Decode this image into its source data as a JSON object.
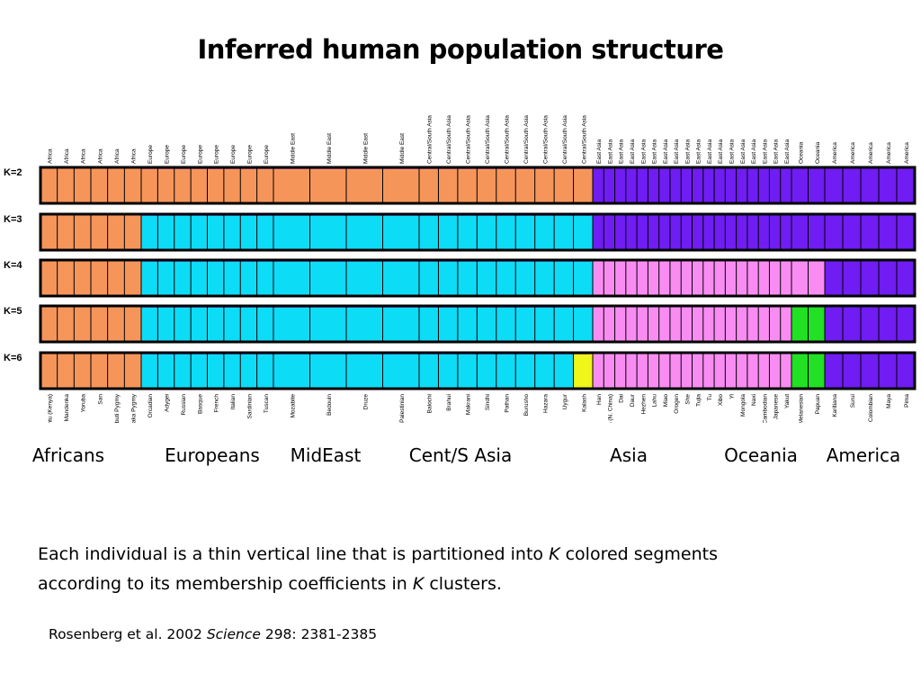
{
  "title": "Inferred human population structure",
  "chart_data": {
    "type": "stacked-bar",
    "k_rows": [
      "K=2",
      "K=3",
      "K=4",
      "K=5",
      "K=6"
    ],
    "cluster_colors": [
      "#f6955a",
      "#0ddcf6",
      "#f98cf2",
      "#6f1df2",
      "#22e024",
      "#f0f51a"
    ],
    "top_region_labels": [
      "Africa",
      "Africa",
      "Africa",
      "Africa",
      "Africa",
      "Africa",
      "Europe",
      "Europe",
      "Europe",
      "Europe",
      "Europe",
      "Europe",
      "Europe",
      "Europe",
      "Middle East",
      "Middle East",
      "Middle East",
      "Middle East",
      "Central/South Asia",
      "Central/South Asia",
      "Central/South Asia",
      "Central/South Asia",
      "Central/South Asia",
      "Central/South Asia",
      "Central/South Asia",
      "Central/South Asia",
      "Central/South Asia",
      "East Asia",
      "East Asia",
      "East Asia",
      "East Asia",
      "East Asia",
      "East Asia",
      "East Asia",
      "East Asia",
      "East Asia",
      "East Asia",
      "East Asia",
      "East Asia",
      "East Asia",
      "East Asia",
      "East Asia",
      "East Asia",
      "East Asia",
      "East Asia",
      "Oceania",
      "Oceania",
      "America",
      "America",
      "America",
      "America",
      "America"
    ],
    "populations": [
      "Bantu (Kenya)",
      "Mandenka",
      "Yoruba",
      "San",
      "Mbuti Pygmy",
      "Biaka Pygmy",
      "Orcadian",
      "Adygei",
      "Russian",
      "Basque",
      "French",
      "Italian",
      "Sardinian",
      "Tuscan",
      "Mozabite",
      "Bedouin",
      "Druze",
      "Palestinian",
      "Balochi",
      "Brahui",
      "Makrani",
      "Sindhi",
      "Pathan",
      "Burusho",
      "Hazara",
      "Uygur",
      "Kalash",
      "Han",
      "Han (N. China)",
      "Dai",
      "Daur",
      "Hezhen",
      "Lahu",
      "Miao",
      "Orogen",
      "She",
      "Tujia",
      "Tu",
      "Xibo",
      "Yi",
      "Mongola",
      "Naxi",
      "Cambodian",
      "Japanese",
      "Yakut",
      "Melanesian",
      "Papuan",
      "Karitiana",
      "Surui",
      "Colombian",
      "Maya",
      "Pima"
    ],
    "population_groups": [
      {
        "name": "Africans",
        "populations": 6
      },
      {
        "name": "Europeans",
        "populations": 8
      },
      {
        "name": "MidEast",
        "populations": 4
      },
      {
        "name": "Cent/S Asia",
        "populations": 9
      },
      {
        "name": "Asia",
        "populations": 18
      },
      {
        "name": "Oceania",
        "populations": 2
      },
      {
        "name": "America",
        "populations": 5
      }
    ],
    "dominant_cluster": {
      "K=2": {
        "Africans": "orange",
        "Europeans": "orange",
        "MidEast": "orange",
        "Cent/S Asia": "orange",
        "Asia": "purple",
        "Oceania": "purple",
        "America": "purple"
      },
      "K=3": {
        "Africans": "orange",
        "Europeans": "cyan",
        "MidEast": "cyan",
        "Cent/S Asia": "cyan",
        "Asia": "purple",
        "Oceania": "purple",
        "America": "purple"
      },
      "K=4": {
        "Africans": "orange",
        "Europeans": "cyan",
        "MidEast": "cyan",
        "Cent/S Asia": "cyan",
        "Asia": "pink",
        "Oceania": "pink",
        "America": "purple"
      },
      "K=5": {
        "Africans": "orange",
        "Europeans": "cyan",
        "MidEast": "cyan",
        "Cent/S Asia": "cyan",
        "Asia": "pink",
        "Oceania": "green",
        "America": "purple"
      },
      "K=6": {
        "Africans": "orange",
        "Europeans": "cyan",
        "MidEast": "cyan",
        "Cent/S Asia": "cyan",
        "Asia": "pink",
        "Oceania": "green",
        "America": "purple",
        "Kalash": "yellow"
      }
    }
  },
  "regions": [
    "Africans",
    "Europeans",
    "MidEast",
    "Cent/S Asia",
    "Asia",
    "Oceania",
    "America"
  ],
  "caption": {
    "line1_before": "Each individual is a thin vertical line that is partitioned into ",
    "k1": "K",
    "line1_after": " colored segments",
    "line2_before": "according to its membership coefficients in ",
    "k2": "K",
    "line2_after": " clusters."
  },
  "citation": {
    "authors": "Rosenberg et al. 2002 ",
    "journal": "Science",
    "ref": " 298: 2381-2385"
  }
}
